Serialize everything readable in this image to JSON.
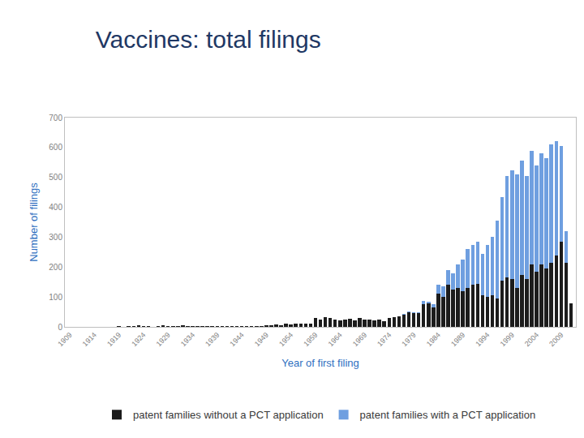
{
  "chart_data": {
    "type": "bar",
    "title": "Vaccines: total filings",
    "x_label": "Year of first filing",
    "y_label": "Number of filings",
    "x": [
      1909,
      1910,
      1911,
      1912,
      1913,
      1914,
      1915,
      1916,
      1917,
      1918,
      1919,
      1920,
      1921,
      1922,
      1923,
      1924,
      1925,
      1926,
      1927,
      1928,
      1929,
      1930,
      1931,
      1932,
      1933,
      1934,
      1935,
      1936,
      1937,
      1938,
      1939,
      1940,
      1941,
      1942,
      1943,
      1944,
      1945,
      1946,
      1947,
      1948,
      1949,
      1950,
      1951,
      1952,
      1953,
      1954,
      1955,
      1956,
      1957,
      1958,
      1959,
      1960,
      1961,
      1962,
      1963,
      1964,
      1965,
      1966,
      1967,
      1968,
      1969,
      1970,
      1971,
      1972,
      1973,
      1974,
      1975,
      1976,
      1977,
      1978,
      1979,
      1980,
      1981,
      1982,
      1983,
      1984,
      1985,
      1986,
      1987,
      1988,
      1989,
      1990,
      1991,
      1992,
      1993,
      1994,
      1995,
      1996,
      1997,
      1998,
      1999,
      2000,
      2001,
      2002,
      2003,
      2004,
      2005,
      2006,
      2007,
      2008,
      2009,
      2010,
      2011
    ],
    "series": [
      {
        "name": "patent families without a PCT application",
        "color": "#1c1c1c",
        "values": [
          1,
          0,
          0,
          0,
          0,
          0,
          0,
          0,
          0,
          1,
          2,
          1,
          2,
          4,
          6,
          3,
          2,
          1,
          2,
          5,
          3,
          2,
          2,
          5,
          3,
          2,
          3,
          2,
          4,
          3,
          2,
          3,
          2,
          2,
          2,
          3,
          2,
          4,
          3,
          4,
          5,
          5,
          8,
          6,
          10,
          8,
          12,
          10,
          12,
          10,
          30,
          25,
          32,
          30,
          25,
          22,
          25,
          28,
          22,
          30,
          25,
          25,
          22,
          25,
          20,
          30,
          32,
          35,
          40,
          48,
          45,
          45,
          75,
          80,
          65,
          110,
          100,
          140,
          125,
          130,
          120,
          130,
          140,
          145,
          105,
          100,
          105,
          95,
          155,
          165,
          160,
          130,
          175,
          160,
          210,
          185,
          210,
          195,
          215,
          240,
          285,
          215,
          80
        ]
      },
      {
        "name": "patent families with a PCT application",
        "color": "#6f9fe0",
        "values": [
          0,
          0,
          0,
          0,
          0,
          0,
          0,
          0,
          0,
          0,
          0,
          0,
          0,
          0,
          0,
          0,
          0,
          0,
          0,
          0,
          0,
          0,
          0,
          0,
          0,
          0,
          0,
          0,
          0,
          0,
          0,
          0,
          0,
          0,
          0,
          0,
          0,
          0,
          0,
          0,
          0,
          0,
          0,
          0,
          0,
          0,
          0,
          0,
          0,
          0,
          0,
          0,
          0,
          0,
          0,
          0,
          0,
          0,
          0,
          0,
          0,
          0,
          0,
          0,
          0,
          0,
          0,
          0,
          3,
          3,
          5,
          3,
          13,
          5,
          10,
          30,
          35,
          50,
          55,
          80,
          105,
          130,
          135,
          140,
          140,
          175,
          195,
          260,
          280,
          340,
          365,
          380,
          380,
          345,
          380,
          355,
          370,
          370,
          395,
          380,
          320,
          105,
          0
        ]
      }
    ],
    "stacked": true,
    "xlim": [
      1908,
      2012
    ],
    "xticks": [
      1909,
      1914,
      1919,
      1924,
      1929,
      1934,
      1939,
      1944,
      1949,
      1954,
      1959,
      1964,
      1969,
      1974,
      1979,
      1984,
      1989,
      1994,
      1999,
      2004,
      2009
    ],
    "ylim": [
      0,
      700
    ],
    "yticks": [
      0,
      100,
      200,
      300,
      400,
      500,
      600,
      700
    ],
    "grid": false,
    "legend": "bottom"
  }
}
